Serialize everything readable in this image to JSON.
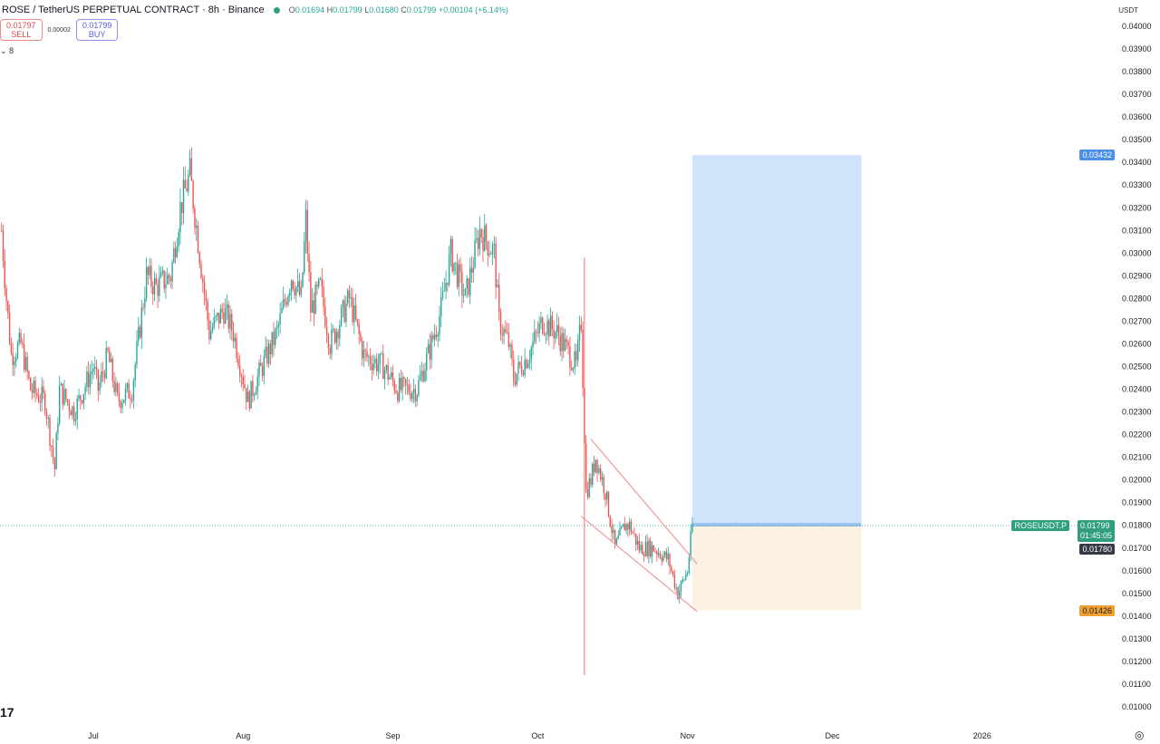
{
  "header": {
    "symbol_title": "ROSE / TetherUS PERPETUAL CONTRACT · 8h · Binance",
    "ohlc": {
      "o_label": "O",
      "o": "0.01694",
      "h_label": "H",
      "h": "0.01799",
      "l_label": "L",
      "l": "0.01680",
      "c_label": "C",
      "c": "0.01799",
      "change": "+0.00104 (+6.14%)"
    },
    "sell_price": "0.01797",
    "sell_label": "SELL",
    "spread": "0.00002",
    "buy_price": "0.01799",
    "buy_label": "BUY",
    "indicators_toggle": "8"
  },
  "price_axis": {
    "unit": "USDT",
    "symbol_label": "ROSEUSDT.P",
    "last_price": "0.01799",
    "countdown": "01:45:05",
    "crosshair_price": "0.01780",
    "target_price": "0.03432",
    "stop_price": "0.01426"
  },
  "colors": {
    "up": "#26a69a",
    "down": "#ef5350",
    "last": "#2e9e7f",
    "target": "#4a8fe8",
    "stop": "#f0a030",
    "target_zone": "#cfe3fa",
    "stop_zone": "#fbf2e2",
    "channel": "#ef9a9a"
  },
  "chart_data": {
    "type": "candlestick",
    "interval": "8h",
    "ylim": [
      0.01,
      0.04
    ],
    "y_ticks": [
      "0.01000",
      "0.01100",
      "0.01200",
      "0.01300",
      "0.01400",
      "0.01500",
      "0.01600",
      "0.01700",
      "0.01800",
      "0.01900",
      "0.02000",
      "0.02100",
      "0.02200",
      "0.02300",
      "0.02400",
      "0.02500",
      "0.02600",
      "0.02700",
      "0.02800",
      "0.02900",
      "0.03000",
      "0.03100",
      "0.03200",
      "0.03300",
      "0.03400",
      "0.03500",
      "0.03600",
      "0.03700",
      "0.03800",
      "0.03900",
      "0.04000"
    ],
    "x_ticks": [
      {
        "label": "Jul",
        "date": "2025-07-01"
      },
      {
        "label": "Aug",
        "date": "2025-08-01"
      },
      {
        "label": "Sep",
        "date": "2025-09-01"
      },
      {
        "label": "Oct",
        "date": "2025-10-01"
      },
      {
        "label": "Nov",
        "date": "2025-11-01"
      },
      {
        "label": "Dec",
        "date": "2025-12-01"
      },
      {
        "label": "2026",
        "date": "2026-01-01"
      }
    ],
    "price_path": [
      [
        "2025-06-12",
        0.031
      ],
      [
        "2025-06-13",
        0.028
      ],
      [
        "2025-06-14",
        0.0255
      ],
      [
        "2025-06-16",
        0.026
      ],
      [
        "2025-06-18",
        0.024
      ],
      [
        "2025-06-21",
        0.0235
      ],
      [
        "2025-06-23",
        0.0205
      ],
      [
        "2025-06-24",
        0.024
      ],
      [
        "2025-06-27",
        0.023
      ],
      [
        "2025-07-01",
        0.025
      ],
      [
        "2025-07-02",
        0.024
      ],
      [
        "2025-07-04",
        0.0255
      ],
      [
        "2025-07-06",
        0.0235
      ],
      [
        "2025-07-09",
        0.024
      ],
      [
        "2025-07-12",
        0.029
      ],
      [
        "2025-07-14",
        0.0285
      ],
      [
        "2025-07-17",
        0.029
      ],
      [
        "2025-07-19",
        0.032
      ],
      [
        "2025-07-21",
        0.0335
      ],
      [
        "2025-07-23",
        0.03
      ],
      [
        "2025-07-25",
        0.0265
      ],
      [
        "2025-07-28",
        0.0275
      ],
      [
        "2025-07-30",
        0.0265
      ],
      [
        "2025-08-02",
        0.0235
      ],
      [
        "2025-08-05",
        0.025
      ],
      [
        "2025-08-08",
        0.0265
      ],
      [
        "2025-08-11",
        0.029
      ],
      [
        "2025-08-13",
        0.028
      ],
      [
        "2025-08-14",
        0.0315
      ],
      [
        "2025-08-15",
        0.0275
      ],
      [
        "2025-08-17",
        0.0285
      ],
      [
        "2025-08-19",
        0.026
      ],
      [
        "2025-08-23",
        0.028
      ],
      [
        "2025-08-26",
        0.0255
      ],
      [
        "2025-08-30",
        0.025
      ],
      [
        "2025-09-02",
        0.024
      ],
      [
        "2025-09-06",
        0.024
      ],
      [
        "2025-09-09",
        0.026
      ],
      [
        "2025-09-11",
        0.0275
      ],
      [
        "2025-09-13",
        0.03
      ],
      [
        "2025-09-16",
        0.028
      ],
      [
        "2025-09-19",
        0.031
      ],
      [
        "2025-09-22",
        0.03
      ],
      [
        "2025-09-23",
        0.027
      ],
      [
        "2025-09-25",
        0.026
      ],
      [
        "2025-09-26",
        0.0245
      ],
      [
        "2025-09-29",
        0.0255
      ],
      [
        "2025-10-02",
        0.027
      ],
      [
        "2025-10-05",
        0.0265
      ],
      [
        "2025-10-09",
        0.025
      ],
      [
        "2025-10-10",
        0.027
      ],
      [
        "2025-10-11",
        0.0195
      ],
      [
        "2025-10-12",
        0.02
      ],
      [
        "2025-10-13",
        0.021
      ],
      [
        "2025-10-15",
        0.0195
      ],
      [
        "2025-10-17",
        0.017
      ],
      [
        "2025-10-19",
        0.018
      ],
      [
        "2025-10-20",
        0.018
      ],
      [
        "2025-10-22",
        0.017
      ],
      [
        "2025-10-25",
        0.017
      ],
      [
        "2025-10-28",
        0.0165
      ],
      [
        "2025-10-30",
        0.015
      ],
      [
        "2025-11-01",
        0.016
      ],
      [
        "2025-11-02",
        0.018
      ]
    ],
    "crash_candle": {
      "date": "2025-10-10",
      "high": 0.0298,
      "low": 0.0114
    },
    "channel": {
      "upper": [
        [
          "2025-10-12",
          0.0218
        ],
        [
          "2025-11-03",
          0.0163
        ]
      ],
      "lower": [
        [
          "2025-10-10",
          0.0184
        ],
        [
          "2025-11-03",
          0.0142
        ]
      ]
    },
    "long_position": {
      "start": "2025-11-02",
      "end": "2025-12-07",
      "entry": 0.01799,
      "target": 0.03432,
      "stop": 0.01426
    }
  }
}
